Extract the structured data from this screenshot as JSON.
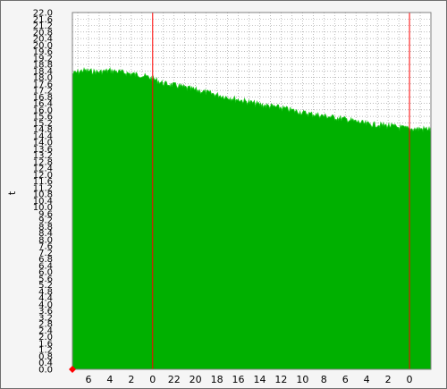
{
  "chart_data": {
    "type": "area",
    "title": "",
    "xlabel": "",
    "ylabel": "t",
    "ylim": [
      0,
      22.0
    ],
    "y_step": 0.4,
    "y_ticks": [
      "0.0",
      "0.4",
      "0.8",
      "1.2",
      "1.6",
      "2.0",
      "2.4",
      "2.8",
      "3.2",
      "3.6",
      "4.0",
      "4.4",
      "4.8",
      "5.2",
      "5.6",
      "6.0",
      "6.4",
      "6.8",
      "7.2",
      "7.6",
      "8.0",
      "8.4",
      "8.8",
      "9.2",
      "9.6",
      "10.0",
      "10.4",
      "10.8",
      "11.2",
      "11.6",
      "12.0",
      "12.4",
      "12.8",
      "13.2",
      "13.6",
      "14.0",
      "14.4",
      "14.8",
      "15.2",
      "15.6",
      "16.0",
      "16.4",
      "16.8",
      "17.2",
      "17.6",
      "18.0",
      "18.4",
      "18.8",
      "19.2",
      "19.6",
      "20.0",
      "20.4",
      "20.8",
      "21.2",
      "21.6",
      "22.0"
    ],
    "x_ticks": [
      "6",
      "4",
      "2",
      "0",
      "22",
      "20",
      "18",
      "16",
      "14",
      "12",
      "10",
      "8",
      "6",
      "4",
      "2",
      "0"
    ],
    "x_range_hours": [
      -7.5,
      26
    ],
    "x_tick_hours": [
      -6,
      -4,
      -2,
      0,
      2,
      4,
      6,
      8,
      10,
      12,
      14,
      16,
      18,
      20,
      22,
      24
    ],
    "day_boundaries_hours": [
      0,
      24
    ],
    "grid": true,
    "legend": "none",
    "series": [
      {
        "x_hours": [
          -7.5,
          -6.5,
          -5.0,
          -4.0,
          -2.0,
          -1.0,
          0.0,
          1.0,
          2.0,
          4.0,
          6.0,
          8.0,
          10.0,
          12.0,
          14.0,
          16.0,
          18.0,
          20.0,
          22.0,
          24.0,
          26.0
        ],
        "values": [
          18.3,
          18.5,
          18.4,
          18.5,
          18.3,
          18.2,
          18.0,
          17.7,
          17.6,
          17.3,
          17.0,
          16.7,
          16.4,
          16.2,
          15.9,
          15.7,
          15.5,
          15.2,
          15.1,
          14.9,
          14.9
        ]
      }
    ],
    "colors": {
      "area": "#00b000",
      "area_top": "#20c820",
      "grid": "#909090",
      "day_line": "#ff0000",
      "marker": "#ff0000",
      "plot_bg": "#ffffff",
      "frame_bg": "#f5f5f5"
    }
  }
}
